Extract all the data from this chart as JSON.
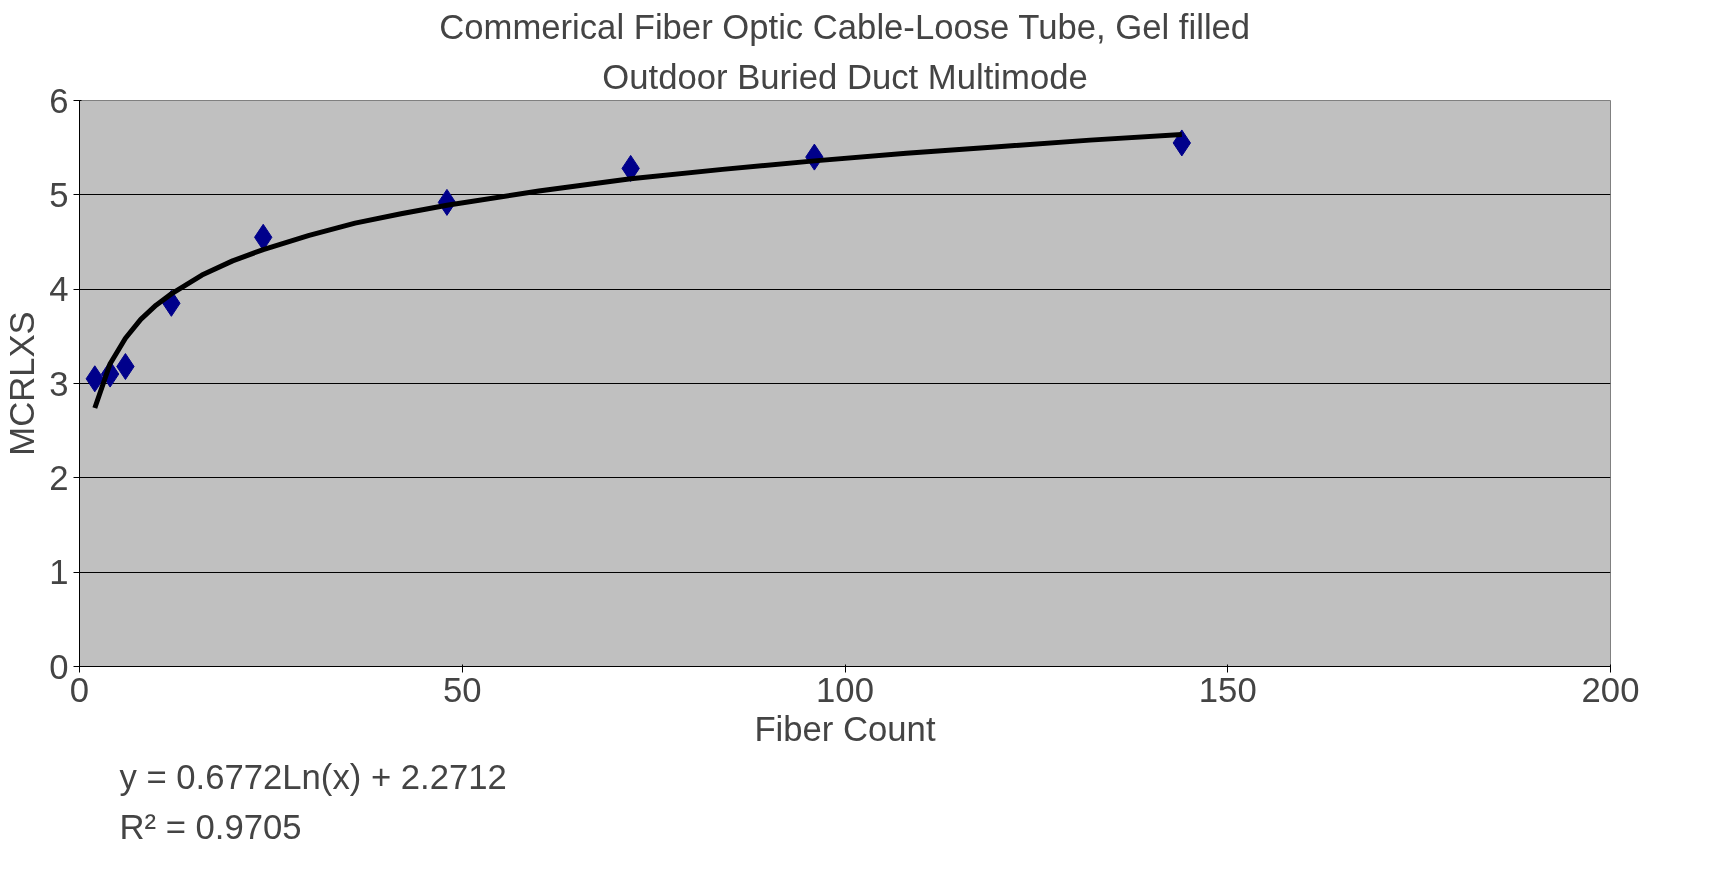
{
  "chart_data": {
    "type": "scatter",
    "title": "Commerical Fiber Optic Cable-Loose Tube, Gel filled",
    "subtitle": "Outdoor Buried Duct Multimode",
    "xlabel": "Fiber Count",
    "ylabel": "MCRLXS",
    "series": [
      {
        "color": "#00008b",
        "marker": "diamond",
        "x": [
          2,
          4,
          6,
          12,
          24,
          48,
          72,
          96,
          144
        ],
        "values": [
          3.05,
          3.1,
          3.18,
          3.85,
          4.55,
          4.92,
          5.28,
          5.4,
          5.55
        ]
      },
      {
        "type": "line",
        "color": "#000000",
        "line_style": "solid",
        "x": [
          2,
          4,
          6,
          8,
          10,
          12,
          16,
          20,
          24,
          30,
          36,
          42,
          48,
          60,
          72,
          84,
          96,
          108,
          120,
          132,
          144
        ],
        "values": [
          2.74,
          3.21,
          3.48,
          3.68,
          3.83,
          3.95,
          4.15,
          4.3,
          4.42,
          4.57,
          4.7,
          4.8,
          4.89,
          5.04,
          5.17,
          5.27,
          5.36,
          5.44,
          5.51,
          5.58,
          5.64
        ]
      }
    ],
    "xlim": [
      0,
      200
    ],
    "xticks": [
      0,
      50,
      100,
      150,
      200
    ],
    "ylim": [
      0,
      6
    ],
    "yticks": [
      0,
      1,
      2,
      3,
      4,
      5,
      6
    ],
    "grid": "y",
    "annotations": [
      "y = 0.6772Ln(x) + 2.2712",
      "R² = 0.9705"
    ]
  }
}
